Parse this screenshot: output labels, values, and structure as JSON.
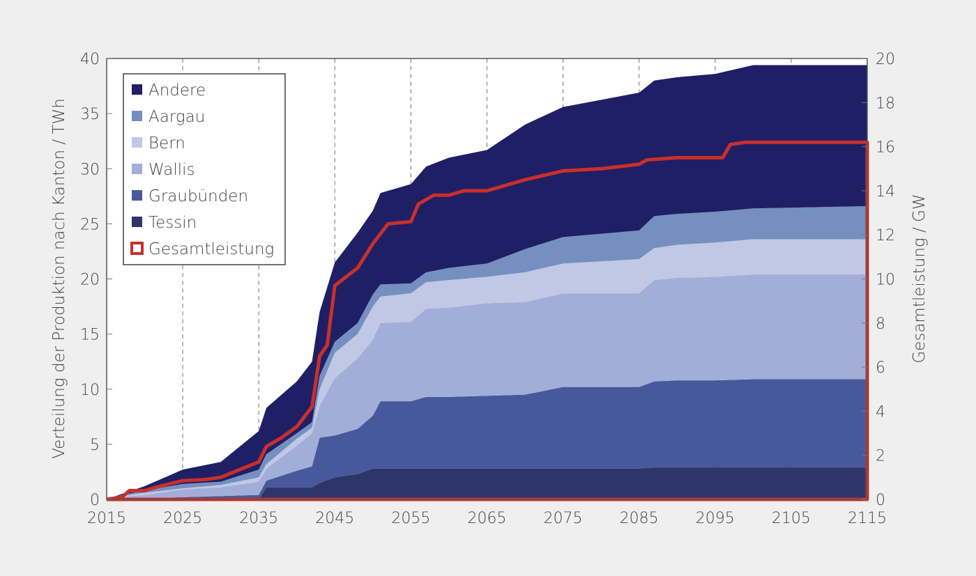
{
  "chart_data": {
    "type": "area",
    "stacked": true,
    "xlabel": "",
    "ylabel": "Verteilung der Produktion nach Kanton / TWh",
    "y2label": "Gesamtleistung / GW",
    "xlim": [
      2015,
      2115
    ],
    "ylim": [
      0,
      40
    ],
    "y2lim": [
      0,
      20
    ],
    "xticks": [
      2015,
      2025,
      2035,
      2045,
      2055,
      2065,
      2075,
      2085,
      2095,
      2105,
      2115
    ],
    "yticks": [
      0,
      5,
      10,
      15,
      20,
      25,
      30,
      35,
      40
    ],
    "y2ticks": [
      0,
      2,
      4,
      6,
      8,
      10,
      12,
      14,
      16,
      18,
      20
    ],
    "grid": "vertical dashed",
    "legend_position": "top-left",
    "x": [
      2015,
      2017,
      2020,
      2025,
      2030,
      2035,
      2036,
      2040,
      2042,
      2043,
      2045,
      2048,
      2050,
      2051,
      2055,
      2057,
      2060,
      2065,
      2070,
      2075,
      2085,
      2087,
      2090,
      2095,
      2100,
      2115
    ],
    "series": [
      {
        "name": "Tessin",
        "color": "#2e3669",
        "values": [
          0,
          0,
          0,
          0,
          0,
          0,
          1.1,
          1.1,
          1.1,
          1.5,
          2.0,
          2.3,
          2.8,
          2.8,
          2.8,
          2.8,
          2.8,
          2.8,
          2.8,
          2.8,
          2.8,
          2.9,
          2.9,
          2.9,
          2.9,
          2.9
        ]
      },
      {
        "name": "Graubünden",
        "color": "#48589c",
        "values": [
          0,
          0,
          0.1,
          0.2,
          0.3,
          0.4,
          0.6,
          1.5,
          1.9,
          4.1,
          3.8,
          4.1,
          4.8,
          6.1,
          6.1,
          6.5,
          6.5,
          6.6,
          6.7,
          7.4,
          7.4,
          7.8,
          7.9,
          7.9,
          8.0,
          8.0
        ]
      },
      {
        "name": "Wallis",
        "color": "#a3aed8",
        "values": [
          0,
          0.2,
          0.3,
          0.7,
          0.8,
          1.2,
          1.1,
          2.3,
          3.0,
          2.9,
          5.2,
          6.4,
          6.9,
          7.1,
          7.2,
          8.0,
          8.1,
          8.4,
          8.4,
          8.5,
          8.5,
          9.2,
          9.3,
          9.4,
          9.5,
          9.5
        ]
      },
      {
        "name": "Bern",
        "color": "#c0c8e6",
        "values": [
          0,
          0.1,
          0.2,
          0.1,
          0.2,
          0.4,
          0.4,
          0.6,
          0.5,
          1.5,
          2.3,
          2.2,
          3.0,
          2.4,
          2.6,
          2.4,
          2.5,
          2.4,
          2.7,
          2.7,
          3.1,
          2.9,
          3.0,
          3.1,
          3.2,
          3.2
        ]
      },
      {
        "name": "Aargau",
        "color": "#7590c0",
        "values": [
          0,
          0.1,
          0.2,
          0.4,
          0.3,
          0.7,
          0.9,
          0.5,
          0.5,
          1.2,
          1.0,
          1.0,
          1.1,
          1.1,
          0.9,
          0.9,
          1.1,
          1.2,
          2.1,
          2.4,
          2.6,
          2.9,
          2.8,
          2.8,
          2.8,
          3.0
        ]
      },
      {
        "name": "Andere",
        "color": "#1f1f66",
        "values": [
          0,
          0.1,
          0.4,
          1.3,
          1.8,
          3.5,
          4.2,
          4.7,
          5.5,
          5.8,
          7.2,
          8.2,
          7.6,
          8.3,
          9.0,
          9.6,
          10.0,
          10.3,
          11.3,
          11.8,
          12.5,
          12.3,
          12.4,
          12.5,
          13.0,
          12.8
        ]
      }
    ],
    "line": {
      "name": "Gesamtleistung",
      "axis": "right",
      "color": "#c8302a",
      "x": [
        2015,
        2017,
        2018,
        2020,
        2022,
        2025,
        2028,
        2030,
        2035,
        2036,
        2038,
        2040,
        2042,
        2043,
        2044,
        2045,
        2048,
        2050,
        2052,
        2055,
        2056,
        2058,
        2060,
        2062,
        2065,
        2070,
        2075,
        2080,
        2085,
        2086,
        2090,
        2096,
        2097,
        2099,
        2115
      ],
      "values": [
        0,
        0.1,
        0.4,
        0.4,
        0.6,
        0.85,
        0.9,
        1.0,
        1.7,
        2.4,
        2.8,
        3.3,
        4.2,
        6.5,
        7.0,
        9.7,
        10.5,
        11.6,
        12.5,
        12.6,
        13.4,
        13.8,
        13.8,
        14.0,
        14.0,
        14.5,
        14.9,
        15.0,
        15.2,
        15.4,
        15.5,
        15.5,
        16.1,
        16.2,
        16.2
      ]
    },
    "legend_order": [
      "Andere",
      "Aargau",
      "Bern",
      "Wallis",
      "Graubünden",
      "Tessin",
      "Gesamtleistung"
    ]
  }
}
